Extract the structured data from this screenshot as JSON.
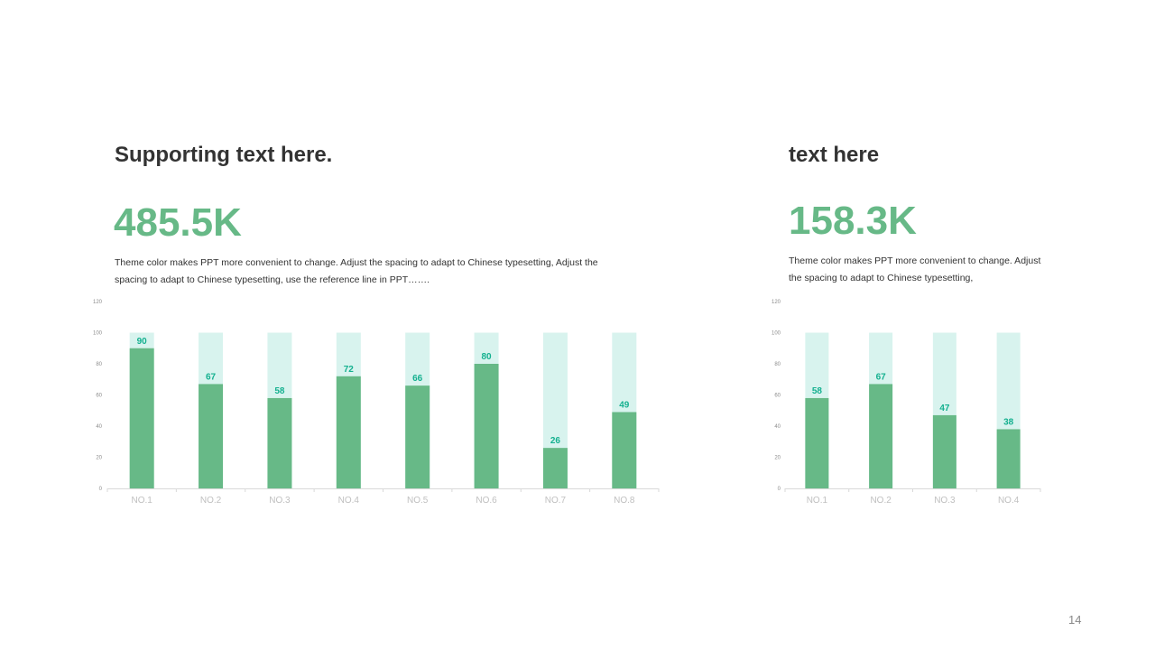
{
  "colors": {
    "accent": "#67b987",
    "bar_background": "#d8f3ee",
    "data_label": "#14b08f",
    "axis": "#d9d9d9",
    "tick": "#8c8c8c",
    "category": "#bfbfbf"
  },
  "left": {
    "heading": "Supporting text here.",
    "big_number": "485.5K",
    "description": "Theme color makes PPT more convenient  to change. Adjust the spacing to adapt to Chinese typesetting, Adjust the spacing to adapt to Chinese typesetting,  use the reference line in PPT……."
  },
  "right": {
    "heading": "text here",
    "big_number": "158.3K",
    "description": "Theme color makes PPT more convenient  to change. Adjust the spacing to adapt to Chinese typesetting,"
  },
  "page_number": "14",
  "chart_data": [
    {
      "type": "bar",
      "title": "",
      "categories": [
        "NO.1",
        "NO.2",
        "NO.3",
        "NO.4",
        "NO.5",
        "NO.6",
        "NO.7",
        "NO.8"
      ],
      "series": [
        {
          "values": [
            100,
            100,
            100,
            100,
            100,
            100,
            100,
            100
          ]
        },
        {
          "values": [
            90,
            67,
            58,
            72,
            66,
            80,
            26,
            49
          ]
        }
      ],
      "yticks": [
        0,
        20,
        40,
        60,
        80,
        100,
        120
      ],
      "ylim": [
        0,
        120
      ],
      "grid": false,
      "legend": "none"
    },
    {
      "type": "bar",
      "title": "",
      "categories": [
        "NO.1",
        "NO.2",
        "NO.3",
        "NO.4"
      ],
      "series": [
        {
          "values": [
            100,
            100,
            100,
            100
          ]
        },
        {
          "values": [
            58,
            67,
            47,
            38
          ]
        }
      ],
      "yticks": [
        0,
        20,
        40,
        60,
        80,
        100,
        120
      ],
      "ylim": [
        0,
        120
      ],
      "grid": false,
      "legend": "none"
    }
  ]
}
